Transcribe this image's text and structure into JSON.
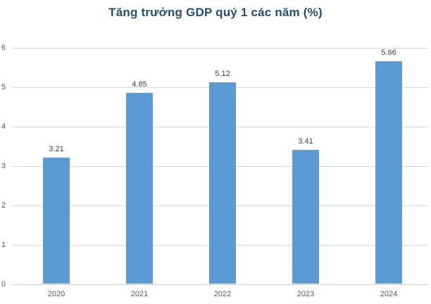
{
  "chart_data": {
    "type": "bar",
    "title": "Tăng trưởng GDP quý 1 các năm (%)",
    "categories": [
      "2020",
      "2021",
      "2022",
      "2023",
      "2024"
    ],
    "values": [
      3.21,
      4.85,
      5.12,
      3.41,
      5.66
    ],
    "value_labels": [
      "3.21",
      "4.85",
      "5.12",
      "3.41",
      "5.66"
    ],
    "xlabel": "",
    "ylabel": "",
    "ylim": [
      0,
      6
    ],
    "ytick_step": 1,
    "yticks": [
      "0",
      "1",
      "2",
      "3",
      "4",
      "5",
      "6"
    ],
    "grid": true,
    "legend_position": "none",
    "colors": {
      "bar": "#5B9BD5",
      "title": "#1F4E79",
      "gridline": "#D9D9D9",
      "axis_line": "#C9C9C9",
      "tick_label": "#595959",
      "value_label": "#404040",
      "background": "#FFFFFF"
    }
  }
}
